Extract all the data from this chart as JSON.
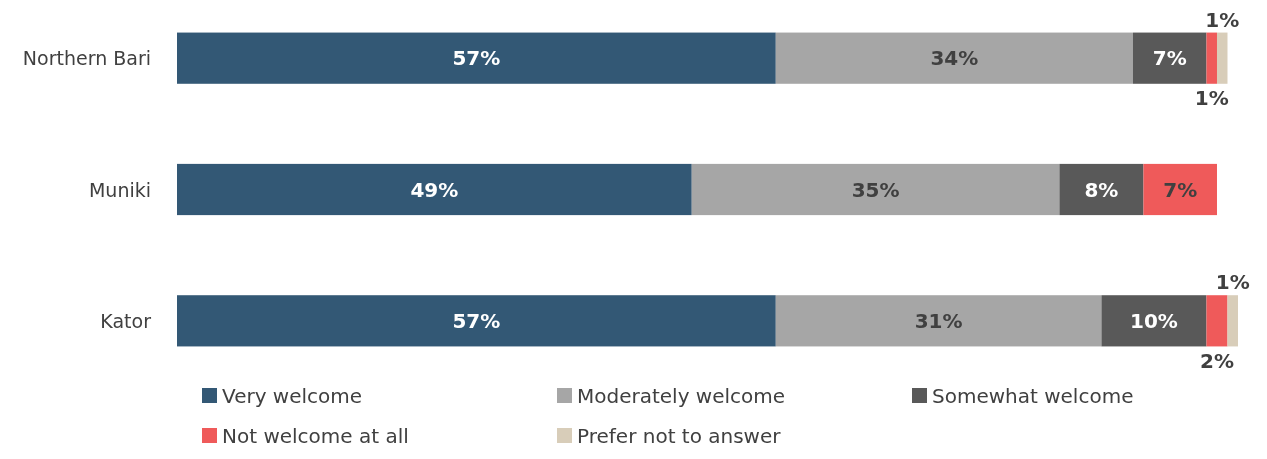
{
  "chart_data": {
    "type": "bar",
    "orientation": "horizontal",
    "stacked": true,
    "categories": [
      "Northern Bari",
      "Muniki",
      "Kator"
    ],
    "series": [
      {
        "name": "Very welcome",
        "color": "#335875",
        "values": [
          57,
          49,
          57
        ],
        "value_labels": [
          "57%",
          "49%",
          "57%"
        ]
      },
      {
        "name": "Moderately welcome",
        "color": "#a6a6a6",
        "values": [
          34,
          35,
          31
        ],
        "value_labels": [
          "34%",
          "35%",
          "31%"
        ]
      },
      {
        "name": "Somewhat welcome",
        "color": "#595959",
        "values": [
          7,
          8,
          10
        ],
        "value_labels": [
          "7%",
          "8%",
          "10%"
        ]
      },
      {
        "name": "Not welcome at all",
        "color": "#ef5a5a",
        "values": [
          1,
          7,
          2
        ],
        "value_labels": [
          "1%",
          "7%",
          "2%"
        ]
      },
      {
        "name": "Prefer not to answer",
        "color": "#d8cdb9",
        "values": [
          1,
          null,
          1
        ],
        "value_labels": [
          "1%",
          null,
          "1%"
        ]
      }
    ],
    "legend": "bottom"
  }
}
